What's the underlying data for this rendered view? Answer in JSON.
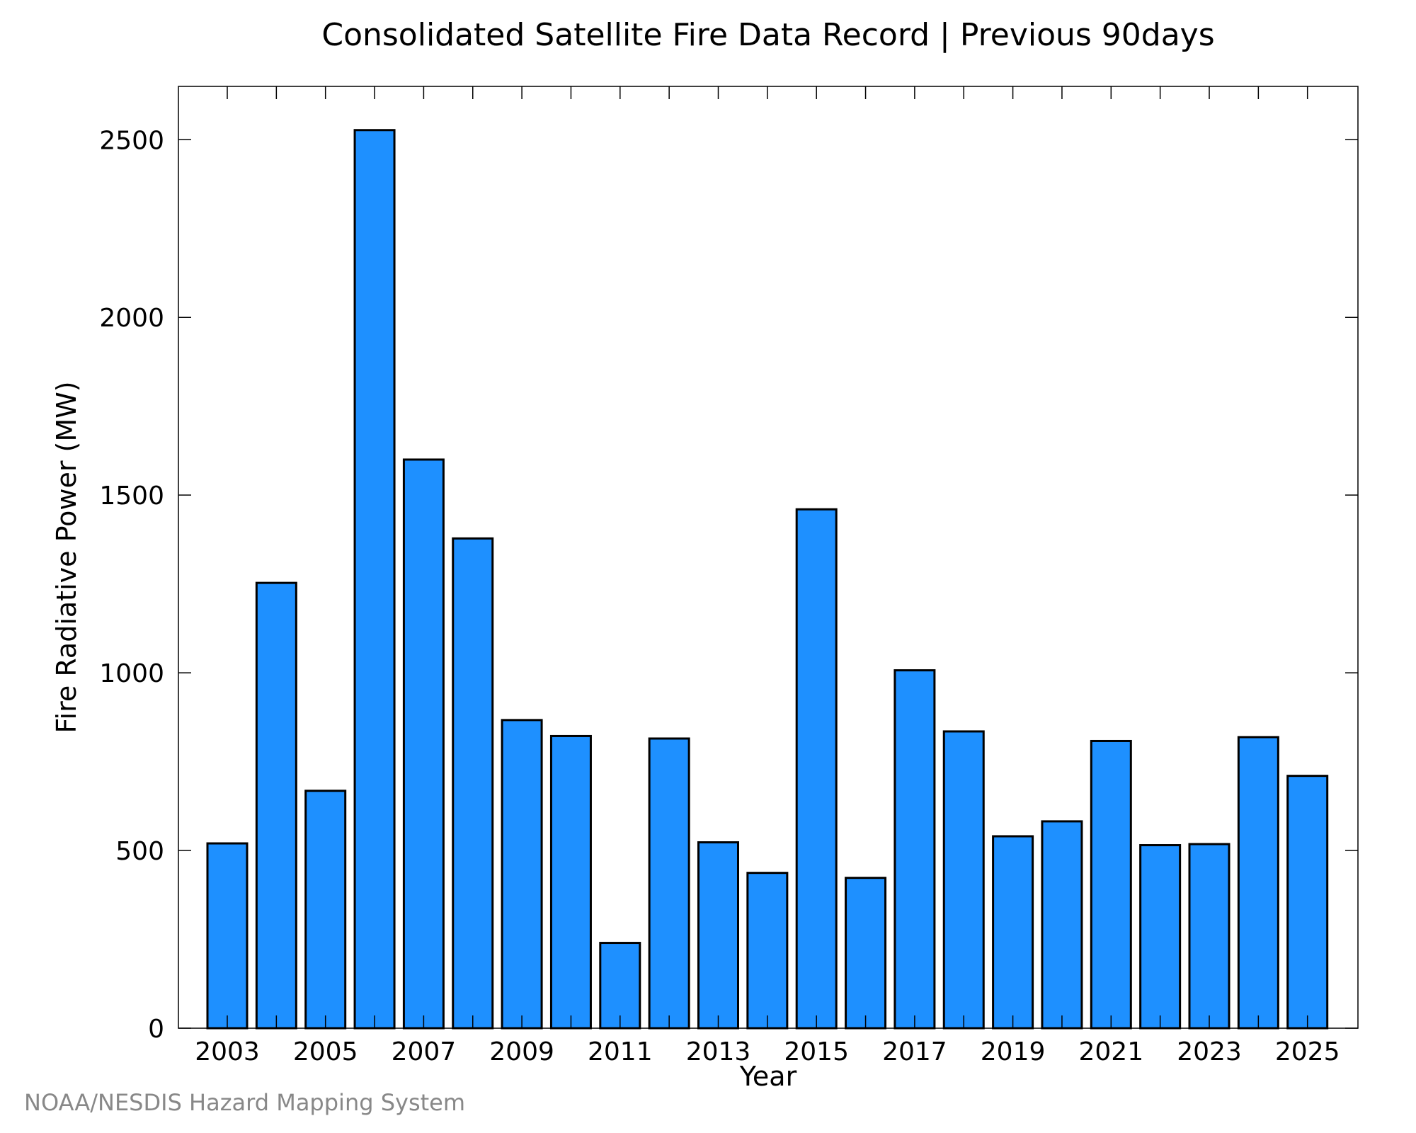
{
  "chart_data": {
    "type": "bar",
    "title": "Consolidated Satellite Fire Data Record | Previous 90days",
    "xlabel": "Year",
    "ylabel": "Fire Radiative Power (MW)",
    "categories": [
      "2003",
      "2004",
      "2005",
      "2006",
      "2007",
      "2008",
      "2009",
      "2010",
      "2011",
      "2012",
      "2013",
      "2014",
      "2015",
      "2016",
      "2017",
      "2018",
      "2019",
      "2020",
      "2021",
      "2022",
      "2023",
      "2024",
      "2025"
    ],
    "values": [
      520,
      1253,
      668,
      2527,
      1600,
      1378,
      867,
      822,
      240,
      815,
      523,
      437,
      1460,
      423,
      1007,
      835,
      540,
      582,
      808,
      515,
      518,
      819,
      710
    ],
    "x_tick_labels": [
      "2003",
      "2005",
      "2007",
      "2009",
      "2011",
      "2013",
      "2015",
      "2017",
      "2019",
      "2021",
      "2023",
      "2025"
    ],
    "y_ticks": [
      0,
      500,
      1000,
      1500,
      2000,
      2500
    ],
    "ylim": [
      0,
      2650
    ],
    "grid": false,
    "bar_color": "#1e90ff",
    "bar_edge_color": "#000000"
  },
  "footer": {
    "credit": "NOAA/NESDIS Hazard Mapping System"
  }
}
